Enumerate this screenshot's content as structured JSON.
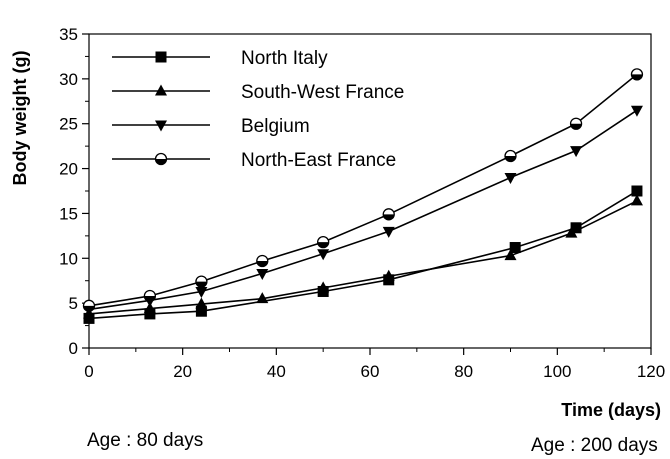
{
  "chart_data": {
    "type": "line",
    "xlabel": "Time (days)",
    "ylabel": "Body weight  (g)",
    "xlim": [
      0,
      120
    ],
    "ylim": [
      0,
      35
    ],
    "x_ticks": [
      "0",
      "20",
      "40",
      "60",
      "80",
      "100",
      "120"
    ],
    "y_ticks": [
      "0",
      "5",
      "10",
      "15",
      "20",
      "25",
      "30",
      "35"
    ],
    "grid": false,
    "legend": "top-left",
    "series": [
      {
        "name": "North Italy",
        "marker": "square",
        "points": [
          [
            0,
            3.3
          ],
          [
            13,
            3.8
          ],
          [
            24,
            4.1
          ],
          [
            50,
            6.3
          ],
          [
            64,
            7.6
          ],
          [
            91,
            11.2
          ],
          [
            104,
            13.4
          ],
          [
            117,
            17.5
          ]
        ]
      },
      {
        "name": "South-West France",
        "marker": "triangle-up",
        "points": [
          [
            0,
            3.8
          ],
          [
            13,
            4.4
          ],
          [
            24,
            4.9
          ],
          [
            37,
            5.5
          ],
          [
            50,
            6.7
          ],
          [
            64,
            8.0
          ],
          [
            90,
            10.3
          ],
          [
            103,
            12.8
          ],
          [
            117,
            16.4
          ]
        ]
      },
      {
        "name": "Belgium",
        "marker": "triangle-down",
        "points": [
          [
            0,
            4.3
          ],
          [
            13,
            5.3
          ],
          [
            24,
            6.3
          ],
          [
            37,
            8.3
          ],
          [
            50,
            10.5
          ],
          [
            64,
            13.0
          ],
          [
            90,
            19.0
          ],
          [
            104,
            22.0
          ],
          [
            117,
            26.5
          ]
        ]
      },
      {
        "name": "North-East France",
        "marker": "circle-half",
        "points": [
          [
            0,
            4.7
          ],
          [
            13,
            5.8
          ],
          [
            24,
            7.4
          ],
          [
            37,
            9.7
          ],
          [
            50,
            11.8
          ],
          [
            64,
            14.9
          ],
          [
            90,
            21.4
          ],
          [
            104,
            25.0
          ],
          [
            117,
            30.5
          ]
        ]
      }
    ]
  },
  "annotations": {
    "age_start": "Age : 80 days",
    "age_end": "Age : 200 days"
  }
}
